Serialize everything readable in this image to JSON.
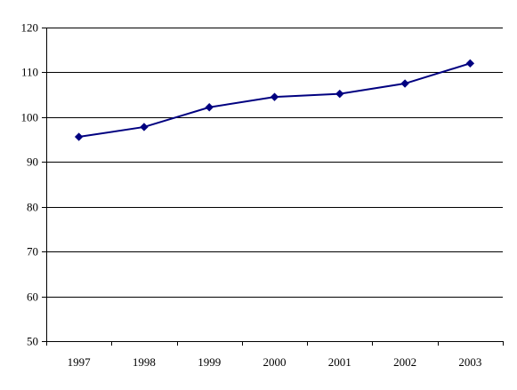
{
  "chart_data": {
    "type": "line",
    "title": "",
    "xlabel": "",
    "ylabel": "",
    "categories": [
      "1997",
      "1998",
      "1999",
      "2000",
      "2001",
      "2002",
      "2003"
    ],
    "series": [
      {
        "values": [
          95.6,
          97.8,
          102.2,
          104.5,
          105.2,
          107.5,
          112.0
        ]
      }
    ],
    "ylim": [
      50,
      120
    ],
    "y_ticks": [
      50,
      60,
      70,
      80,
      90,
      100,
      110,
      120
    ],
    "grid": "horizontal",
    "legend": "none",
    "line_color": "#000080",
    "grid_color": "#000000"
  }
}
